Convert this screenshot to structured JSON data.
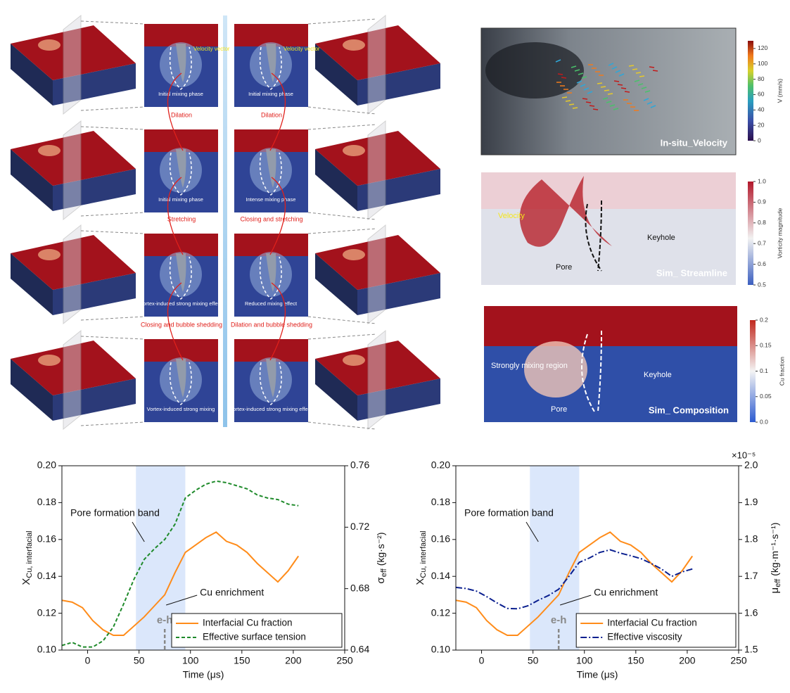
{
  "top_left": {
    "stage_labels_left": [
      "Dilation",
      "Stretching",
      "Closing and bubble shedding"
    ],
    "stage_labels_right": [
      "Dilation",
      "Closing and stretching",
      "Dilation and bubble shedding"
    ],
    "slices_left": [
      {
        "velocity_label": "Velocity vector",
        "phase_label": "Initial mixing phase"
      },
      {
        "phase_label": "Initial mixing phase"
      },
      {
        "phase_label": "Vortex-induced strong mixing effect"
      },
      {
        "phase_label": "Vortex-induced strong mixing"
      }
    ],
    "slices_right": [
      {
        "velocity_label": "Velocity vector",
        "phase_label": "Initial mixing phase"
      },
      {
        "phase_label": "Intense mixing phase"
      },
      {
        "phase_label": "Reduced mixing effect"
      },
      {
        "phase_label": "Vortex-induced strong mixing effect"
      }
    ]
  },
  "right_panels": [
    {
      "caption": "In-situ_Velocity",
      "annotations": [],
      "colorbar": {
        "label": "V (mm/s)",
        "range": [
          0,
          130
        ],
        "ticks": [
          0,
          20,
          40,
          60,
          80,
          100,
          120
        ]
      }
    },
    {
      "caption": "Sim_ Streamline",
      "annotations": [
        "Velocity",
        "Keyhole",
        "Pore"
      ],
      "colorbar": {
        "label": "Vorticity magnitude",
        "range": [
          0.5,
          1.0
        ],
        "ticks": [
          0.5,
          0.6,
          0.7,
          0.8,
          0.9,
          {
            "value": 1,
            "label": "1.0"
          }
        ]
      }
    },
    {
      "caption": "Sim_ Composition",
      "annotations": [
        "Strongly mixing region",
        "Keyhole",
        "Pore"
      ],
      "colorbar": {
        "label": "Cu fraction",
        "range": [
          0,
          0.2
        ],
        "ticks": [
          {
            "value": 0,
            "label": "0.0"
          },
          0.05,
          0.1,
          0.15,
          0.2
        ]
      }
    }
  ],
  "chart_data": [
    {
      "type": "line",
      "x_label": "Time (μs)",
      "y_label": {
        "symbol": "X",
        "sub": "Cu, interfacial"
      },
      "y2_label": {
        "symbol": "σ",
        "sub": "eff",
        "unit": "(kg·s⁻²)"
      },
      "x": [
        -25,
        -15,
        -5,
        5,
        15,
        25,
        35,
        45,
        55,
        65,
        75,
        85,
        95,
        105,
        115,
        125,
        135,
        145,
        155,
        165,
        175,
        185,
        195,
        205
      ],
      "xlim": [
        -25,
        250
      ],
      "xticks": [
        0,
        50,
        100,
        150,
        200,
        250
      ],
      "ylim": [
        0.1,
        0.2
      ],
      "yticks": [
        {
          "value": 0.1,
          "label": "0.10"
        },
        0.12,
        0.14,
        0.16,
        0.18,
        {
          "value": 0.2,
          "label": "0.20"
        }
      ],
      "y2lim": [
        0.64,
        0.76
      ],
      "y2ticks": [
        0.64,
        0.68,
        0.72,
        0.76
      ],
      "band": {
        "x": [
          47,
          95
        ],
        "label": "Pore formation band",
        "color": "#dbe7fb"
      },
      "marker": {
        "x": 75,
        "label": "e-h"
      },
      "annotation": "Cu enrichment",
      "legend": "lower right",
      "series": [
        {
          "name": "Interfacial Cu fraction",
          "color": "#ff8c1a",
          "dash": "solid",
          "values": [
            0.127,
            0.126,
            0.123,
            0.116,
            0.111,
            0.108,
            0.108,
            0.113,
            0.118,
            0.124,
            0.13,
            0.142,
            0.153,
            0.157,
            0.161,
            0.164,
            0.159,
            0.157,
            0.153,
            0.147,
            0.142,
            0.137,
            0.143,
            0.151
          ]
        },
        {
          "name": "Effective surface tension",
          "color": "#1e8a2a",
          "dash": "dashed",
          "axis": "y2",
          "values": [
            0.643,
            0.645,
            0.642,
            0.642,
            0.646,
            0.655,
            0.67,
            0.686,
            0.699,
            0.706,
            0.712,
            0.722,
            0.739,
            0.744,
            0.748,
            0.75,
            0.749,
            0.747,
            0.745,
            0.741,
            0.739,
            0.738,
            0.735,
            0.734
          ]
        }
      ]
    },
    {
      "type": "line",
      "x_label": "Time (μs)",
      "y_label": {
        "symbol": "X",
        "sub": "Cu, interfacial"
      },
      "y2_label": {
        "symbol": "μ",
        "sub": "eff",
        "unit": "(kg·m⁻¹·s⁻¹)"
      },
      "y2_multiplier": "×10⁻⁵",
      "x": [
        -25,
        -15,
        -5,
        5,
        15,
        25,
        35,
        45,
        55,
        65,
        75,
        85,
        95,
        105,
        115,
        125,
        135,
        145,
        155,
        165,
        175,
        185,
        195,
        205
      ],
      "xlim": [
        -25,
        250
      ],
      "xticks": [
        0,
        50,
        100,
        150,
        200,
        250
      ],
      "ylim": [
        0.1,
        0.2
      ],
      "yticks": [
        {
          "value": 0.1,
          "label": "0.10"
        },
        0.12,
        0.14,
        0.16,
        0.18,
        {
          "value": 0.2,
          "label": "0.20"
        }
      ],
      "y2lim": [
        1.5,
        2.0
      ],
      "y2ticks": [
        {
          "value": 1.5,
          "label": "1.5"
        },
        1.6,
        1.7,
        1.8,
        1.9,
        {
          "value": 2,
          "label": "2.0"
        }
      ],
      "band": {
        "x": [
          47,
          95
        ],
        "label": "Pore formation band",
        "color": "#dbe7fb"
      },
      "marker": {
        "x": 75,
        "label": "e-h"
      },
      "annotation": "Cu enrichment",
      "legend": "lower right",
      "series": [
        {
          "name": "Interfacial Cu fraction",
          "color": "#ff8c1a",
          "dash": "solid",
          "values": [
            0.127,
            0.126,
            0.123,
            0.116,
            0.111,
            0.108,
            0.108,
            0.113,
            0.118,
            0.124,
            0.13,
            0.142,
            0.153,
            0.157,
            0.161,
            0.164,
            0.159,
            0.157,
            0.153,
            0.147,
            0.142,
            0.137,
            0.143,
            0.151
          ]
        },
        {
          "name": "Effective viscosity",
          "color": "#0a1f8f",
          "dash": "dashdot",
          "axis": "y2",
          "values": [
            1.67,
            1.667,
            1.66,
            1.645,
            1.628,
            1.613,
            1.612,
            1.62,
            1.635,
            1.648,
            1.665,
            1.7,
            1.738,
            1.75,
            1.765,
            1.772,
            1.763,
            1.756,
            1.748,
            1.735,
            1.72,
            1.7,
            1.712,
            1.72
          ]
        }
      ]
    }
  ]
}
